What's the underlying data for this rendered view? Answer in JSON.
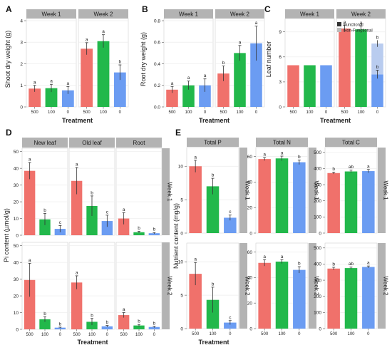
{
  "colors": {
    "red": "#f0716b",
    "green": "#22b84b",
    "blue": "#6b9cf2",
    "blue_nonfunctional": "#b9ccef",
    "strip": "#b3b3b3",
    "panel_bg": "#ffffff",
    "grid": "#ececec",
    "axis": "#333333"
  },
  "chart_data": [
    {
      "panel": "A",
      "type": "bar",
      "facets": [
        "Week 1",
        "Week 2"
      ],
      "categories": [
        "500",
        "100",
        "0"
      ],
      "xlabel": "Treatment",
      "ylabel": "Shoot dry weight (g)",
      "ylim": [
        0,
        4.1
      ],
      "yticks": [
        0,
        1,
        2,
        3,
        4
      ],
      "data": {
        "Week 1": {
          "values": [
            0.85,
            0.87,
            0.77
          ],
          "errors": [
            0.15,
            0.18,
            0.17
          ],
          "letters": [
            "a",
            "a",
            "a"
          ]
        },
        "Week 2": {
          "values": [
            2.7,
            3.05,
            1.6
          ],
          "errors": [
            0.28,
            0.3,
            0.35
          ],
          "letters": [
            "a",
            "a",
            "b"
          ]
        }
      }
    },
    {
      "panel": "B",
      "type": "bar",
      "facets": [
        "Week 1",
        "Week 2"
      ],
      "categories": [
        "500",
        "100",
        "0"
      ],
      "xlabel": "Treatment",
      "ylabel": "Root dry weight (g)",
      "ylim": [
        0,
        0.82
      ],
      "yticks": [
        0.0,
        0.2,
        0.4,
        0.6,
        0.8
      ],
      "data": {
        "Week 1": {
          "values": [
            0.16,
            0.2,
            0.2
          ],
          "errors": [
            0.03,
            0.04,
            0.06
          ],
          "letters": [
            "a",
            "a",
            "a"
          ]
        },
        "Week 2": {
          "values": [
            0.31,
            0.5,
            0.59
          ],
          "errors": [
            0.07,
            0.07,
            0.16
          ],
          "letters": [
            "b",
            "a",
            "a"
          ]
        }
      }
    },
    {
      "panel": "C",
      "type": "bar",
      "facets": [
        "Week 1",
        "Week 2"
      ],
      "categories": [
        "500",
        "100",
        "0"
      ],
      "xlabel": "Treatment",
      "ylabel": "Leaf number",
      "ylim": [
        0,
        10.6
      ],
      "yticks": [
        0,
        3,
        6,
        9
      ],
      "legend": [
        "Functional",
        "Non-Functional"
      ],
      "data": {
        "Week 1": {
          "values": [
            5,
            5,
            5
          ],
          "nonfunctional": [
            0,
            0,
            0
          ],
          "errors": [
            0,
            0,
            0
          ],
          "letters": [
            "",
            "",
            ""
          ]
        },
        "Week 2": {
          "values": [
            9.4,
            9.3,
            3.9
          ],
          "nonfunctional": [
            0,
            0,
            3.7
          ],
          "errors": [
            0.4,
            0.4,
            0.5
          ],
          "letters": [
            "a",
            "a",
            "b"
          ],
          "extra_letter": "b"
        }
      }
    },
    {
      "panel": "D",
      "type": "bar",
      "facets": [
        "New leaf",
        "Old leaf",
        "Root"
      ],
      "rows": [
        "Week 1",
        "Week 2"
      ],
      "categories": [
        "500",
        "100",
        "0"
      ],
      "xlabel": "Treatment",
      "ylabel": "Pi content (µmol/g)",
      "ylim": [
        0,
        52
      ],
      "yticks": [
        0,
        10,
        20,
        30,
        40,
        50
      ],
      "data": {
        "Week 1": {
          "New leaf": {
            "values": [
              38.5,
              9.5,
              3.8
            ],
            "errors": [
              5,
              3.5,
              2
            ],
            "letters": [
              "a",
              "b",
              "c"
            ]
          },
          "Old leaf": {
            "values": [
              32.5,
              17.5,
              8.5
            ],
            "errors": [
              8,
              6,
              3.5
            ],
            "letters": [
              "a",
              "b",
              "c"
            ]
          },
          "Root": {
            "values": [
              10,
              1.8,
              1.2
            ],
            "errors": [
              3.5,
              0.5,
              0.4
            ],
            "letters": [
              "a",
              "b",
              "b"
            ]
          }
        },
        "Week 2": {
          "New leaf": {
            "values": [
              29.5,
              6,
              1
            ],
            "errors": [
              10,
              1.5,
              0.3
            ],
            "letters": [
              "a",
              "b",
              "b"
            ]
          },
          "Old leaf": {
            "values": [
              28,
              4.5,
              1.8
            ],
            "errors": [
              4,
              2,
              0.5
            ],
            "letters": [
              "a",
              "b",
              "b"
            ]
          },
          "Root": {
            "values": [
              8.5,
              2.3,
              1.4
            ],
            "errors": [
              1.5,
              0.6,
              0.4
            ],
            "letters": [
              "a",
              "b",
              "b"
            ]
          }
        }
      }
    },
    {
      "panel": "E",
      "type": "bar",
      "facets": [
        "Total P",
        "Total N",
        "Total C"
      ],
      "rows": [
        "Week 1",
        "Week 2"
      ],
      "categories": [
        "500",
        "100",
        "0"
      ],
      "xlabel": "Treatment",
      "ylabel": "Nutrient content (mg/g)",
      "ylims": [
        [
          0,
          12.8
        ],
        [
          0,
          67
        ],
        [
          0,
          530
        ]
      ],
      "yticks": [
        [
          0,
          5,
          10
        ],
        [
          0,
          20,
          40,
          60
        ],
        [
          0,
          100,
          200,
          300,
          400,
          500
        ]
      ],
      "data": {
        "Week 1": {
          "Total P": {
            "values": [
              10,
              7,
              2.3
            ],
            "errors": [
              0.9,
              1.2,
              0.4
            ],
            "letters": [
              "a",
              "b",
              "c"
            ]
          },
          "Total N": {
            "values": [
              58,
              58.5,
              55.5
            ],
            "errors": [
              1.2,
              1.8,
              1.8
            ],
            "letters": [
              "a",
              "a",
              "b"
            ]
          },
          "Total C": {
            "values": [
              372,
              382,
              384
            ],
            "errors": [
              6,
              8,
              10
            ],
            "letters": [
              "b",
              "ab",
              "a"
            ]
          }
        },
        "Week 2": {
          "Total P": {
            "values": [
              8.2,
              4.3,
              0.9
            ],
            "errors": [
              1.7,
              1.9,
              0.3
            ],
            "letters": [
              "a",
              "b",
              "c"
            ]
          },
          "Total N": {
            "values": [
              51.5,
              52.5,
              46
            ],
            "errors": [
              2.5,
              1.5,
              2.5
            ],
            "letters": [
              "a",
              "a",
              "b"
            ]
          },
          "Total C": {
            "values": [
              372,
              375,
              382
            ],
            "errors": [
              8,
              6,
              6
            ],
            "letters": [
              "b",
              "ab",
              "a"
            ]
          }
        }
      }
    }
  ]
}
